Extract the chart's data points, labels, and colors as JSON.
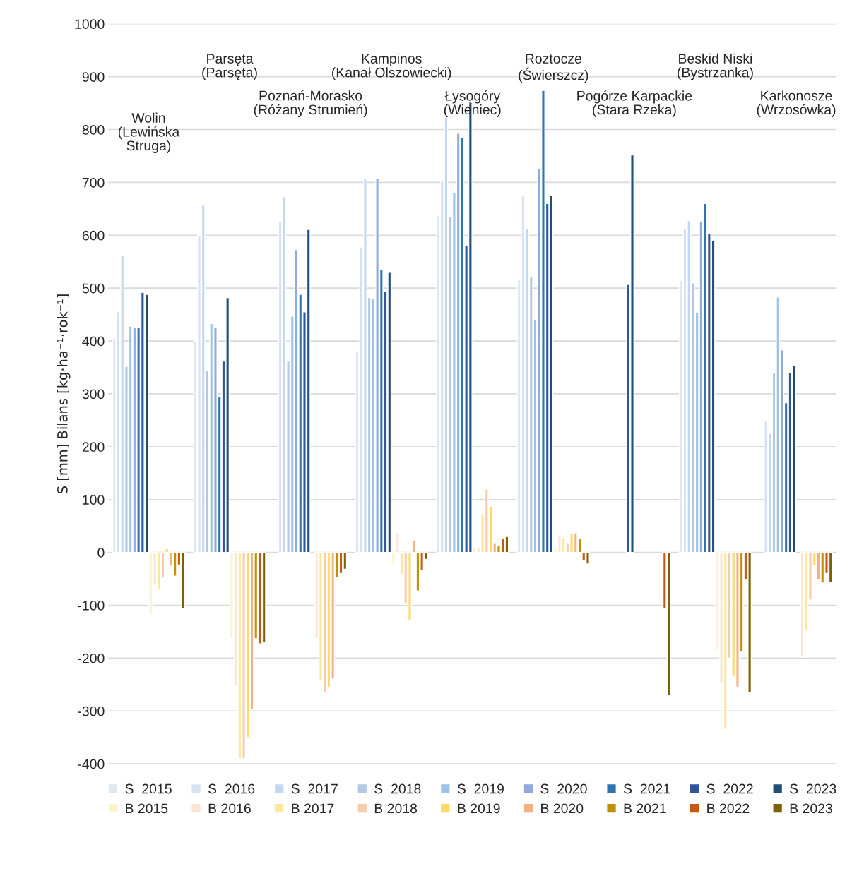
{
  "chart_data": {
    "type": "bar",
    "ylabel": "S [mm] Bilans [kg·ha⁻¹·rok⁻¹]",
    "categories": [
      "Wolin\n(Lewińska\nStruga)",
      "Parsęta\n(Parsęta)",
      "Poznań-Morasko\n(Różany Strumień)",
      "Kampinos\n(Kanał Olszowiecki)",
      "Łysogóry\n(Wieniec)",
      "Roztocze\n(Świerszcz)",
      "Pogórze Karpackie\n(Stara Rzeka)",
      "Beskid Niski\n(Bystrzanka)",
      "Karkonosze\n(Wrzosówka)"
    ],
    "series": [
      {
        "name": "S  2015",
        "color": "#dee8f5",
        "values": [
          405,
          400,
          null,
          380,
          637,
          517,
          null,
          515,
          null
        ]
      },
      {
        "name": "S  2016",
        "color": "#d6e2f3",
        "values": [
          455,
          600,
          627,
          578,
          703,
          676,
          null,
          612,
          248
        ]
      },
      {
        "name": "S  2017",
        "color": "#c2d8ef",
        "values": [
          562,
          657,
          673,
          706,
          823,
          612,
          null,
          628,
          225
        ]
      },
      {
        "name": "S  2018",
        "color": "#b4c7e7",
        "values": [
          352,
          345,
          362,
          482,
          636,
          521,
          null,
          510,
          340
        ]
      },
      {
        "name": "S  2019",
        "color": "#9dc3e6",
        "values": [
          428,
          433,
          447,
          480,
          680,
          440,
          null,
          453,
          483
        ]
      },
      {
        "name": "S  2020",
        "color": "#8faadc",
        "values": [
          425,
          425,
          573,
          708,
          793,
          726,
          null,
          627,
          383
        ]
      },
      {
        "name": "S  2021",
        "color": "#2e75b6",
        "values": [
          425,
          295,
          488,
          536,
          785,
          874,
          null,
          660,
          283
        ]
      },
      {
        "name": "S  2022",
        "color": "#2f5597",
        "values": [
          492,
          362,
          455,
          493,
          580,
          660,
          507,
          604,
          340
        ]
      },
      {
        "name": "S  2023",
        "color": "#1f4e79",
        "values": [
          488,
          482,
          611,
          530,
          852,
          676,
          752,
          590,
          354
        ]
      },
      {
        "name": "B 2015",
        "color": "#fff2cc",
        "values": [
          -118,
          -163,
          null,
          -22,
          8,
          8,
          null,
          -185,
          null
        ]
      },
      {
        "name": "B 2016",
        "color": "#fbe5d6",
        "values": [
          -60,
          -252,
          -163,
          35,
          10,
          33,
          null,
          -248,
          -198
        ]
      },
      {
        "name": "B 2017",
        "color": "#ffe699",
        "values": [
          -70,
          -390,
          -243,
          -42,
          72,
          27,
          null,
          -335,
          -148
        ]
      },
      {
        "name": "B 2018",
        "color": "#f8cbad",
        "values": [
          -47,
          -390,
          -265,
          -98,
          120,
          17,
          null,
          -200,
          -90
        ]
      },
      {
        "name": "B 2019",
        "color": "#ffd966",
        "values": [
          7,
          -350,
          -255,
          -130,
          87,
          35,
          null,
          -235,
          -25
        ]
      },
      {
        "name": "B 2020",
        "color": "#f4b183",
        "values": [
          -26,
          -297,
          -240,
          22,
          17,
          37,
          null,
          -255,
          -52
        ]
      },
      {
        "name": "B 2021",
        "color": "#bf9000",
        "values": [
          -45,
          -163,
          -48,
          -73,
          13,
          27,
          null,
          -188,
          -58
        ]
      },
      {
        "name": "B 2022",
        "color": "#c55a11",
        "values": [
          -24,
          -173,
          -40,
          -35,
          27,
          -15,
          -106,
          -52,
          -40
        ]
      },
      {
        "name": "B 2023",
        "color": "#7f6000",
        "values": [
          -107,
          -170,
          -32,
          -13,
          30,
          -22,
          -270,
          -265,
          -57
        ]
      }
    ],
    "ylim": [
      -400,
      1000
    ],
    "yticks": [
      -400,
      -300,
      -200,
      -100,
      0,
      100,
      200,
      300,
      400,
      500,
      600,
      700,
      800,
      900,
      1000
    ],
    "grid": "y",
    "legend": "bottom"
  }
}
